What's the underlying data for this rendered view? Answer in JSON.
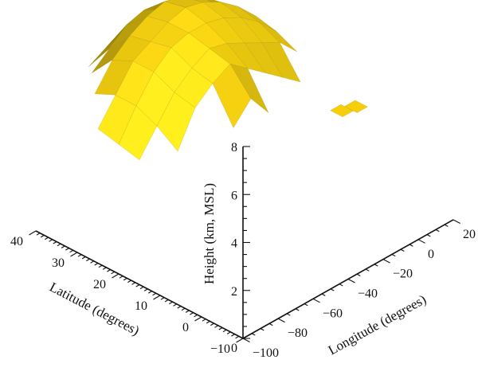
{
  "chart_data": {
    "type": "surface3d",
    "title": "",
    "xlabel": "Longitude (degrees)",
    "ylabel": "Latitude (degrees)",
    "zlabel": "Height (km, MSL)",
    "xlim": [
      -100,
      20
    ],
    "ylim": [
      -10,
      40
    ],
    "zlim": [
      0,
      8
    ],
    "x_ticks": [
      "−100",
      "−80",
      "−60",
      "−40",
      "−20",
      "0",
      "20"
    ],
    "y_ticks": [
      "−10",
      "0",
      "10",
      "20",
      "30",
      "40"
    ],
    "z_ticks": [
      "0",
      "2",
      "4",
      "6",
      "8"
    ],
    "surface_color": "#f2cf10",
    "grid": false,
    "surface": {
      "lon": [
        -100,
        -90,
        -80,
        -70,
        -60,
        -50,
        -40,
        -30,
        -20,
        -10,
        0,
        10,
        20
      ],
      "lat": [
        -10,
        -5,
        0,
        5,
        10,
        15,
        20,
        25,
        30,
        35,
        40
      ],
      "height_km": [
        [
          null,
          null,
          null,
          null,
          null,
          null,
          null,
          null,
          null,
          null,
          null,
          null,
          null
        ],
        [
          null,
          null,
          null,
          null,
          null,
          null,
          null,
          null,
          null,
          null,
          null,
          null,
          null
        ],
        [
          null,
          null,
          null,
          null,
          null,
          null,
          null,
          null,
          5.3,
          null,
          null,
          null,
          null
        ],
        [
          null,
          null,
          null,
          6.2,
          7.0,
          6.0,
          null,
          4.6,
          null,
          null,
          4.2,
          null,
          null
        ],
        [
          null,
          5.6,
          7.0,
          7.6,
          8.0,
          7.4,
          6.8,
          6.2,
          5.6,
          null,
          null,
          null,
          null
        ],
        [
          5.2,
          6.2,
          7.2,
          7.8,
          8.2,
          8.0,
          7.6,
          7.2,
          6.8,
          6.0,
          null,
          null,
          null
        ],
        [
          5.4,
          6.6,
          7.6,
          8.2,
          8.4,
          8.4,
          8.2,
          7.8,
          7.2,
          6.4,
          5.6,
          null,
          null
        ],
        [
          5.6,
          6.6,
          7.6,
          8.0,
          8.4,
          8.6,
          8.4,
          8.0,
          7.4,
          6.6,
          null,
          null,
          null
        ],
        [
          null,
          6.2,
          7.2,
          7.8,
          8.2,
          8.4,
          8.2,
          7.8,
          7.0,
          null,
          null,
          null,
          null
        ],
        [
          null,
          null,
          6.2,
          6.8,
          7.4,
          7.6,
          7.2,
          6.4,
          null,
          null,
          null,
          null,
          null
        ],
        [
          null,
          null,
          null,
          5.6,
          6.0,
          6.2,
          null,
          null,
          null,
          null,
          null,
          null,
          null
        ]
      ]
    }
  }
}
